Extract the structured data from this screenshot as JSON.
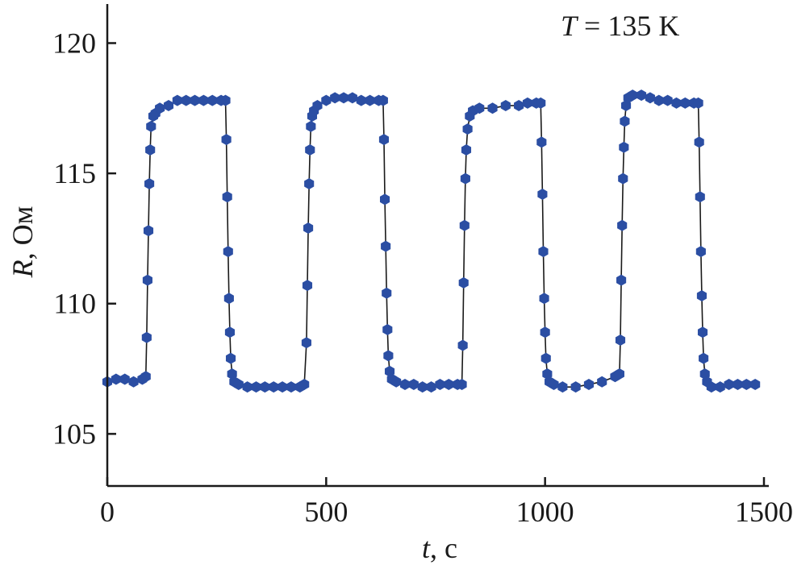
{
  "chart_data": {
    "type": "scatter",
    "title": "",
    "annotation": {
      "var": "T",
      "rest": " = 135 K"
    },
    "xlabel": {
      "var": "t",
      "rest": ", с"
    },
    "ylabel": {
      "var": "R",
      "rest": ", Ом"
    },
    "xlim": [
      0,
      1500
    ],
    "ylim": [
      103,
      121.5
    ],
    "xticks": [
      0,
      500,
      1000,
      1500
    ],
    "yticks": [
      105,
      110,
      115,
      120
    ],
    "grid": false,
    "legend": "none",
    "marker": "hexagon",
    "series": [
      {
        "color": "#2b4ea3",
        "x": [
          0,
          20,
          40,
          60,
          80,
          88,
          90,
          92,
          94,
          96,
          98,
          100,
          105,
          110,
          120,
          140,
          160,
          180,
          200,
          220,
          240,
          260,
          270,
          272,
          274,
          276,
          278,
          280,
          282,
          285,
          290,
          300,
          320,
          340,
          360,
          380,
          400,
          420,
          440,
          450,
          455,
          457,
          459,
          461,
          463,
          465,
          468,
          472,
          480,
          500,
          520,
          540,
          560,
          580,
          600,
          620,
          630,
          632,
          634,
          636,
          638,
          640,
          642,
          645,
          650,
          660,
          680,
          700,
          720,
          740,
          760,
          780,
          800,
          810,
          812,
          814,
          816,
          818,
          820,
          823,
          828,
          835,
          850,
          880,
          910,
          940,
          960,
          980,
          990,
          992,
          994,
          996,
          998,
          1000,
          1002,
          1005,
          1010,
          1020,
          1040,
          1070,
          1100,
          1130,
          1160,
          1170,
          1172,
          1174,
          1176,
          1178,
          1180,
          1182,
          1185,
          1190,
          1200,
          1220,
          1240,
          1260,
          1280,
          1300,
          1320,
          1340,
          1350,
          1352,
          1354,
          1356,
          1358,
          1360,
          1362,
          1365,
          1370,
          1380,
          1400,
          1420,
          1440,
          1460,
          1480
        ],
        "y": [
          107.0,
          107.1,
          107.1,
          107.0,
          107.1,
          107.2,
          108.7,
          110.9,
          112.8,
          114.6,
          115.9,
          116.8,
          117.2,
          117.3,
          117.5,
          117.6,
          117.8,
          117.8,
          117.8,
          117.8,
          117.8,
          117.8,
          117.8,
          116.3,
          114.1,
          112.0,
          110.2,
          108.9,
          107.9,
          107.3,
          107.0,
          106.9,
          106.8,
          106.8,
          106.8,
          106.8,
          106.8,
          106.8,
          106.8,
          106.9,
          108.5,
          110.7,
          112.9,
          114.6,
          115.9,
          116.8,
          117.2,
          117.4,
          117.6,
          117.8,
          117.9,
          117.9,
          117.9,
          117.8,
          117.8,
          117.8,
          117.8,
          116.3,
          114.0,
          112.2,
          110.4,
          109.0,
          108.0,
          107.4,
          107.1,
          107.0,
          106.9,
          106.9,
          106.8,
          106.8,
          106.9,
          106.9,
          106.9,
          106.9,
          108.4,
          110.8,
          113.0,
          114.8,
          115.9,
          116.7,
          117.2,
          117.4,
          117.5,
          117.5,
          117.6,
          117.6,
          117.7,
          117.7,
          117.7,
          116.2,
          114.2,
          112.0,
          110.2,
          108.9,
          107.9,
          107.3,
          107.0,
          106.9,
          106.8,
          106.8,
          106.9,
          107.0,
          107.2,
          107.3,
          108.6,
          110.9,
          113.0,
          114.8,
          116.0,
          117.0,
          117.6,
          117.9,
          118.0,
          118.0,
          117.9,
          117.8,
          117.8,
          117.7,
          117.7,
          117.7,
          117.7,
          116.2,
          114.1,
          112.0,
          110.3,
          108.9,
          107.9,
          107.3,
          107.0,
          106.8,
          106.8,
          106.9,
          106.9,
          106.9,
          106.9
        ]
      }
    ]
  }
}
